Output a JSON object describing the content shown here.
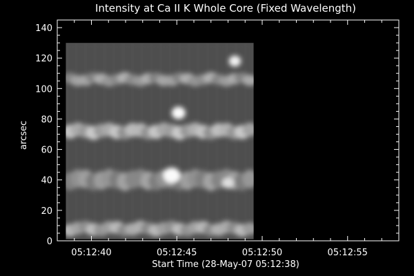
{
  "chart_data": {
    "type": "heatmap",
    "title": "Intensity at Ca II K Whole Core (Fixed Wavelength)",
    "xlabel": "Start Time (28-May-07 05:12:38)",
    "ylabel": "arcsec",
    "x_tick_labels": [
      "05:12:40",
      "05:12:45",
      "05:12:50",
      "05:12:55"
    ],
    "x_ticks_sec": [
      2,
      7,
      12,
      17
    ],
    "xlim_sec": [
      0,
      20
    ],
    "y_ticks": [
      0,
      20,
      40,
      60,
      80,
      100,
      120,
      140
    ],
    "ylim": [
      0,
      145
    ],
    "data_extent": {
      "x_sec": [
        0.5,
        11.5
      ],
      "y": [
        1,
        130
      ]
    },
    "colormap": "grayscale",
    "background": "#000000",
    "axis_color": "#ffffff",
    "bright_features": [
      {
        "x_sec": [
          0.5,
          11.5
        ],
        "y": 106,
        "intensity": 0.62,
        "width": 7
      },
      {
        "x_sec": [
          0.5,
          11.5
        ],
        "y": 72,
        "intensity": 0.75,
        "width": 9
      },
      {
        "x_sec": [
          0.5,
          11.5
        ],
        "y": 40,
        "intensity": 0.55,
        "width": 12
      },
      {
        "x_sec": [
          0.5,
          11.5
        ],
        "y": 8,
        "intensity": 0.68,
        "width": 8
      },
      {
        "x_sec": 7.1,
        "y": 84,
        "intensity": 1.0,
        "width": 8
      },
      {
        "x_sec": 6.7,
        "y": 43,
        "intensity": 1.0,
        "width": 10
      },
      {
        "x_sec": 10.4,
        "y": 118,
        "intensity": 0.95,
        "width": 7
      },
      {
        "x_sec": 10.0,
        "y": 38,
        "intensity": 0.85,
        "width": 7
      }
    ]
  }
}
